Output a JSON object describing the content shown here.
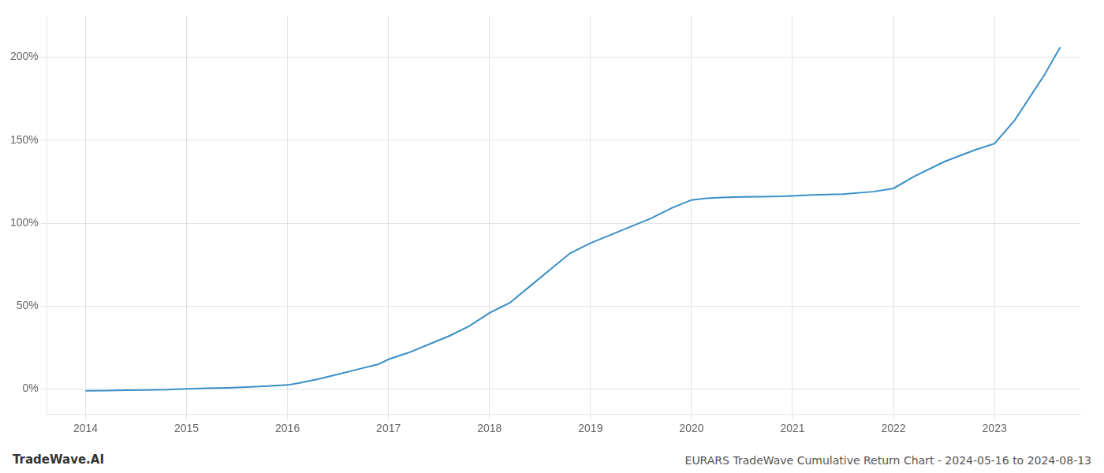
{
  "chart_data": {
    "type": "line",
    "title": "EURARS TradeWave Cumulative Return Chart - 2024-05-16 to 2024-08-13",
    "annotations": [
      "TradeWave.AI"
    ],
    "color": "#3a8fc7",
    "x": [
      2014.0,
      2014.2,
      2014.4,
      2014.6,
      2014.8,
      2015.0,
      2015.2,
      2015.4,
      2015.6,
      2015.8,
      2016.0,
      2016.1,
      2016.3,
      2016.5,
      2016.7,
      2016.9,
      2017.0,
      2017.2,
      2017.4,
      2017.6,
      2017.8,
      2018.0,
      2018.1,
      2018.2,
      2018.4,
      2018.6,
      2018.8,
      2019.0,
      2019.2,
      2019.4,
      2019.6,
      2019.8,
      2020.0,
      2020.15,
      2020.3,
      2020.5,
      2020.7,
      2020.9,
      2021.0,
      2021.2,
      2021.5,
      2021.8,
      2022.0,
      2022.2,
      2022.5,
      2022.8,
      2023.0,
      2023.2,
      2023.5,
      2023.65
    ],
    "values": [
      -1.0,
      -0.9,
      -0.7,
      -0.5,
      -0.3,
      0.2,
      0.5,
      0.8,
      1.2,
      1.8,
      2.5,
      3.5,
      6.0,
      9.0,
      12.0,
      15.0,
      18.0,
      22.0,
      27.0,
      32.0,
      38.0,
      46.0,
      49.0,
      52.0,
      62.0,
      72.0,
      82.0,
      88.0,
      93.0,
      98.0,
      103.0,
      109.0,
      114.0,
      115.0,
      115.5,
      115.8,
      116.0,
      116.2,
      116.5,
      117.0,
      117.5,
      119.0,
      121.0,
      128.0,
      137.0,
      144.0,
      148.0,
      162.0,
      190.0,
      206.0
    ],
    "xlim": [
      2013.62,
      2023.85
    ],
    "xticks": [
      2014,
      2015,
      2016,
      2017,
      2018,
      2019,
      2020,
      2021,
      2022,
      2023
    ],
    "ylim": [
      -15,
      225
    ],
    "yticks": [
      {
        "value": 0,
        "label": "0%"
      },
      {
        "value": 50,
        "label": "50%"
      },
      {
        "value": 100,
        "label": "100%"
      },
      {
        "value": 150,
        "label": "150%"
      },
      {
        "value": 200,
        "label": "200%"
      }
    ],
    "grid": true
  }
}
